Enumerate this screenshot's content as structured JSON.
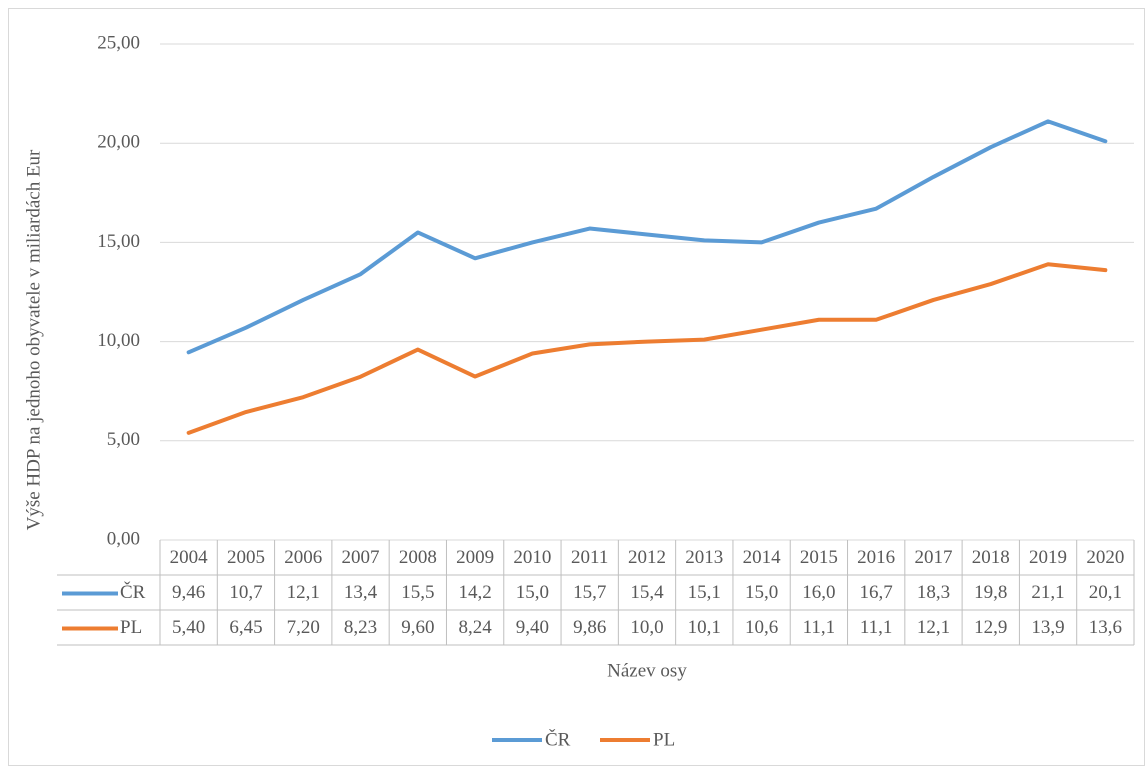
{
  "chart_data": {
    "type": "line",
    "y_axis_label": "Výše HDP na jednoho obyvatele v miliardách Eur",
    "x_axis_label": "Název osy",
    "categories": [
      "2004",
      "2005",
      "2006",
      "2007",
      "2008",
      "2009",
      "2010",
      "2011",
      "2012",
      "2013",
      "2014",
      "2015",
      "2016",
      "2017",
      "2018",
      "2019",
      "2020"
    ],
    "series": [
      {
        "name": "ČR",
        "color": "#5b9bd5",
        "values": [
          9.46,
          10.7,
          12.1,
          13.4,
          15.5,
          14.2,
          15.0,
          15.7,
          15.4,
          15.1,
          15.0,
          16.0,
          16.7,
          18.3,
          19.8,
          21.1,
          20.1
        ],
        "value_labels": [
          "9,46",
          "10,7",
          "12,1",
          "13,4",
          "15,5",
          "14,2",
          "15,0",
          "15,7",
          "15,4",
          "15,1",
          "15,0",
          "16,0",
          "16,7",
          "18,3",
          "19,8",
          "21,1",
          "20,1"
        ]
      },
      {
        "name": "PL",
        "color": "#ed7d31",
        "values": [
          5.4,
          6.45,
          7.2,
          8.23,
          9.6,
          8.24,
          9.4,
          9.86,
          10.0,
          10.1,
          10.6,
          11.1,
          11.1,
          12.1,
          12.9,
          13.9,
          13.6
        ],
        "value_labels": [
          "5,40",
          "6,45",
          "7,20",
          "8,23",
          "9,60",
          "8,24",
          "9,40",
          "9,86",
          "10,0",
          "10,1",
          "10,6",
          "11,1",
          "11,1",
          "12,1",
          "12,9",
          "13,9",
          "13,6"
        ]
      }
    ],
    "ylim": [
      0,
      25
    ],
    "yticks": [
      {
        "value": 0,
        "label": "0,00"
      },
      {
        "value": 5,
        "label": "5,00"
      },
      {
        "value": 10,
        "label": "10,00"
      },
      {
        "value": 15,
        "label": "15,00"
      },
      {
        "value": 20,
        "label": "20,00"
      },
      {
        "value": 25,
        "label": "25,00"
      }
    ],
    "grid": true,
    "data_table": true,
    "legend": "bottom"
  }
}
